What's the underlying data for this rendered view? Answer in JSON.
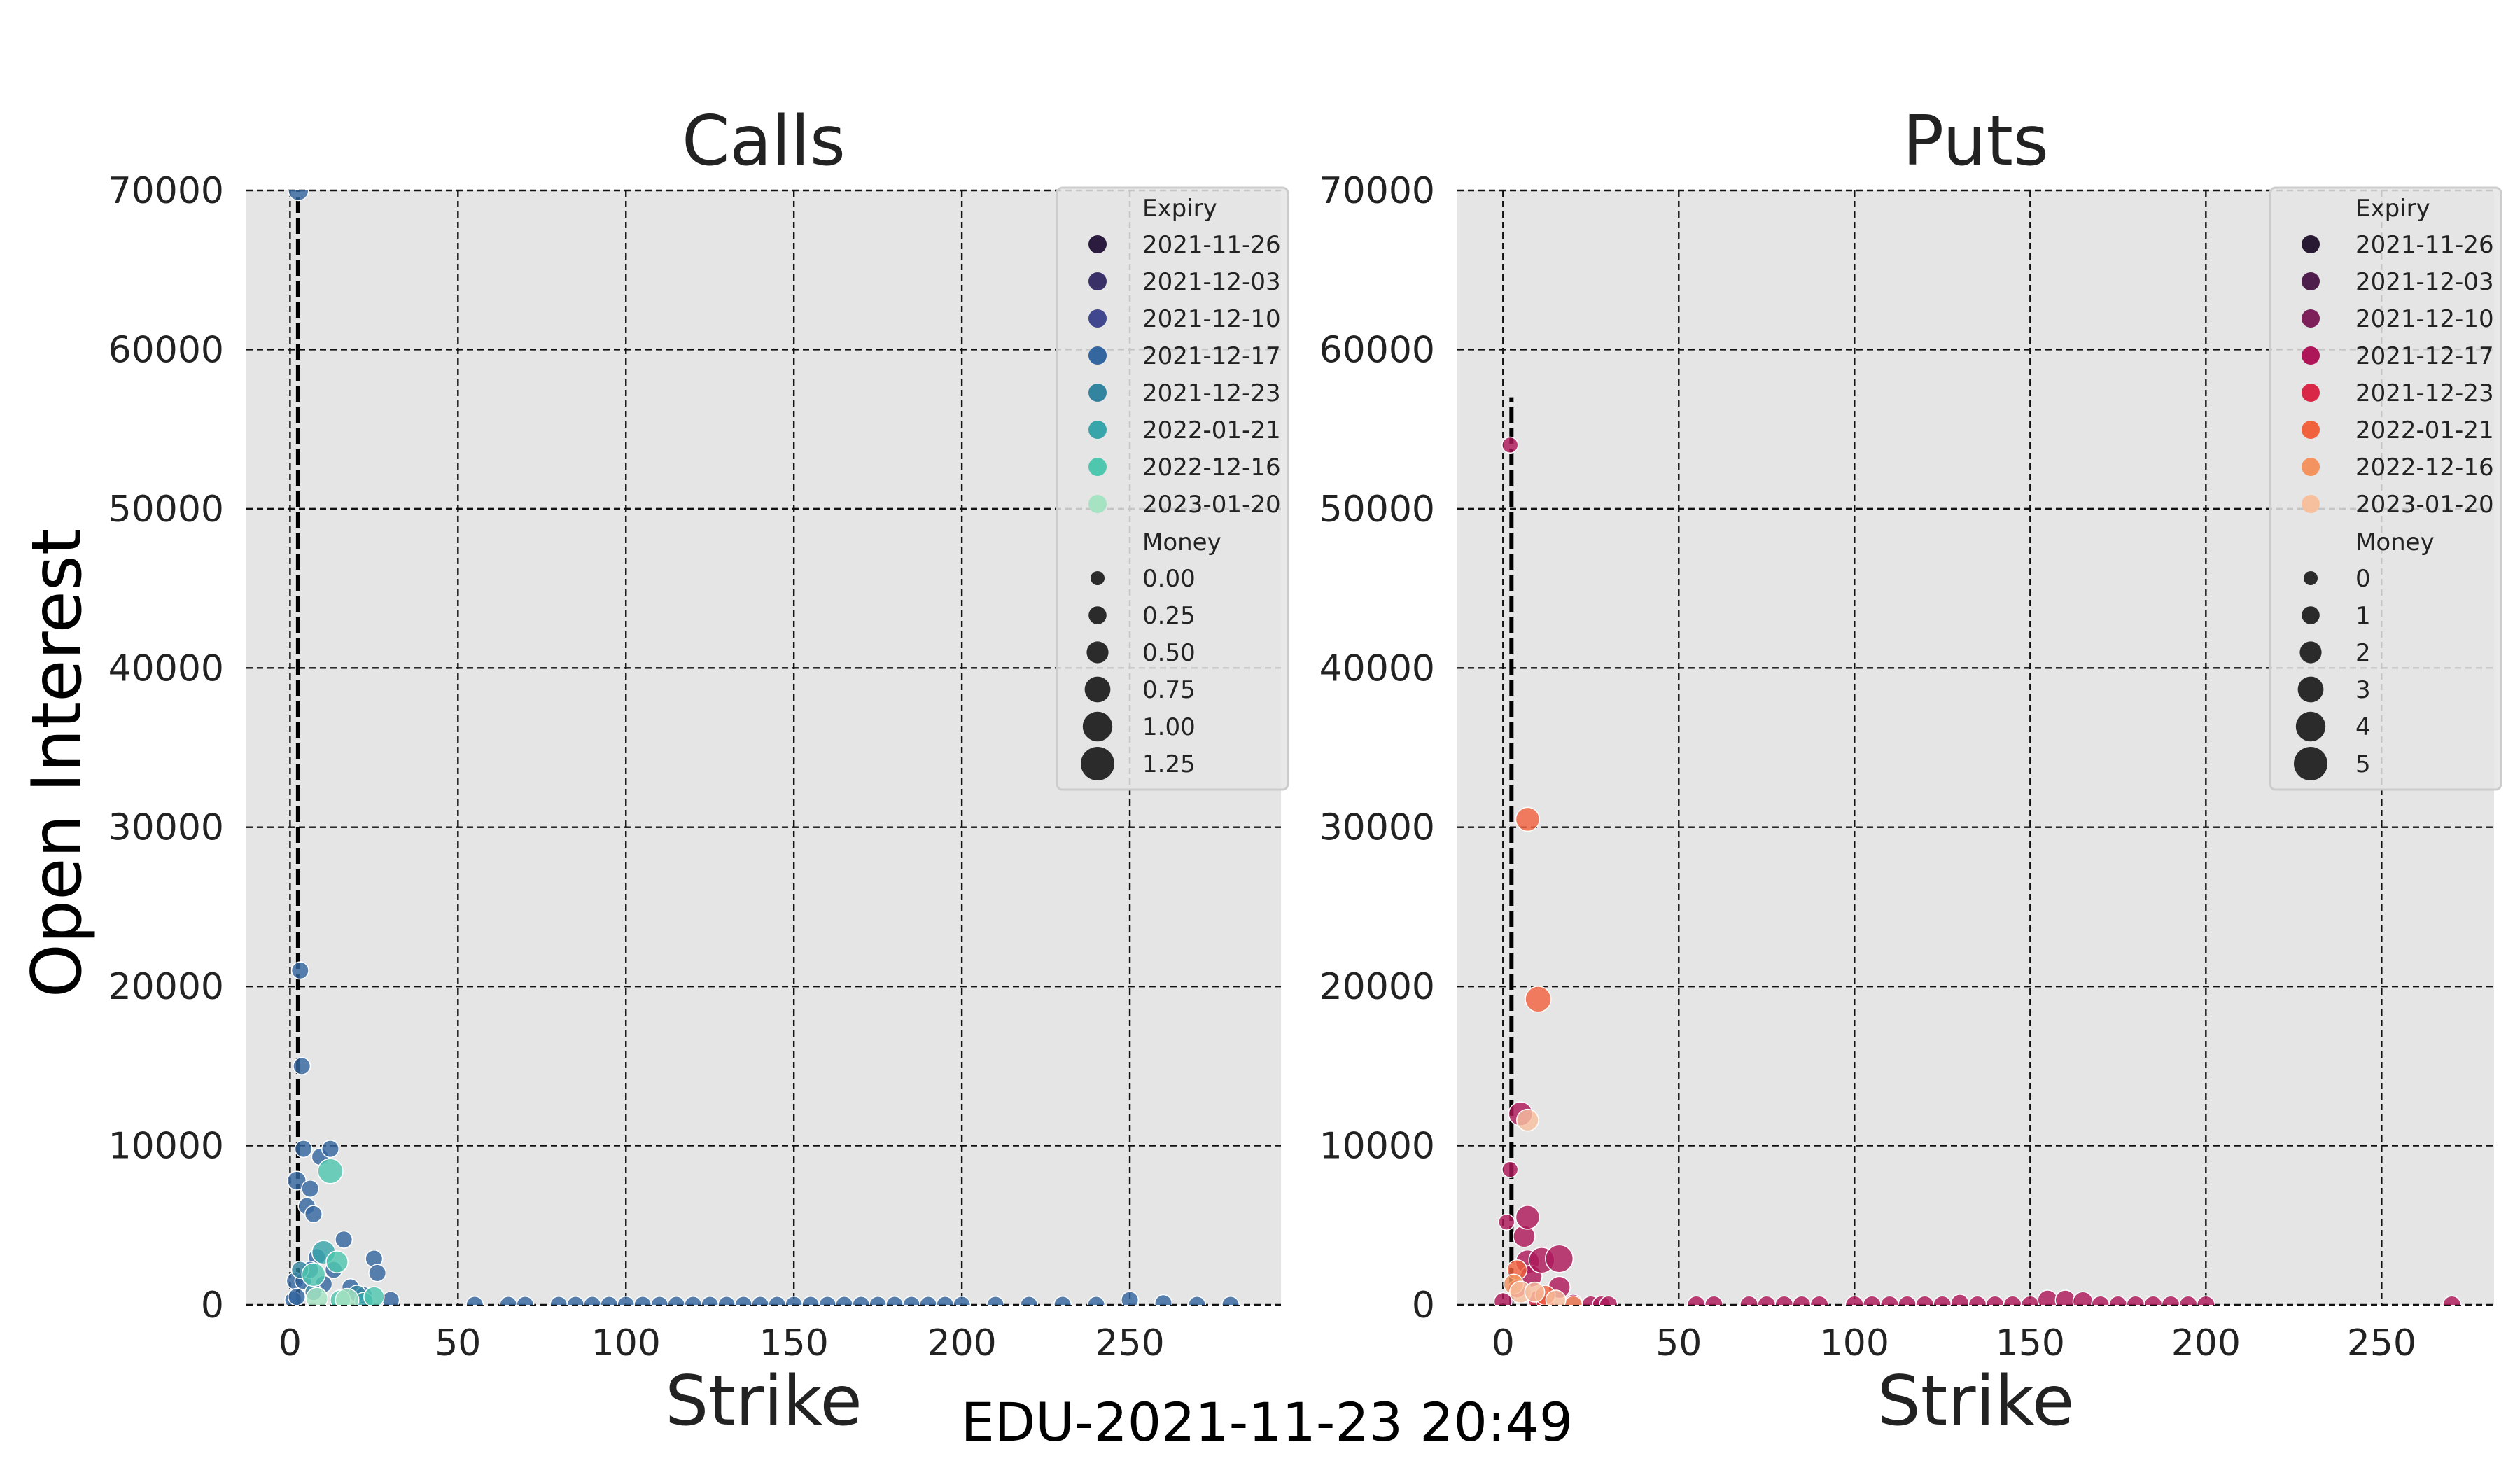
{
  "figure": {
    "suptitle": "EDU-2021-11-23 20:49",
    "ylabel": "Open Interest"
  },
  "chart_data": [
    {
      "type": "scatter",
      "title": "Calls",
      "xlabel": "Strike",
      "ylabel": "Open Interest",
      "xlim": [
        -13,
        295
      ],
      "ylim": [
        0,
        70000
      ],
      "xticks": [
        "0",
        "50",
        "100",
        "150",
        "200",
        "250"
      ],
      "yticks": [
        "0",
        "10000",
        "20000",
        "30000",
        "40000",
        "50000",
        "60000",
        "70000"
      ],
      "grid": true,
      "vline": {
        "x": 2.4,
        "y": [
          0,
          70000
        ]
      },
      "legend_position": "top-right",
      "legend": {
        "hue_title": "Expiry",
        "hue_entries": [
          {
            "label": "2021-11-26",
            "color": "#2b1b3e"
          },
          {
            "label": "2021-12-03",
            "color": "#3a3068"
          },
          {
            "label": "2021-12-10",
            "color": "#41478f"
          },
          {
            "label": "2021-12-17",
            "color": "#3466a0"
          },
          {
            "label": "2021-12-23",
            "color": "#33849f"
          },
          {
            "label": "2022-01-21",
            "color": "#37a5a9"
          },
          {
            "label": "2022-12-16",
            "color": "#4fc7ae"
          },
          {
            "label": "2023-01-20",
            "color": "#a6e3c2"
          }
        ],
        "size_title": "Money",
        "size_entries": [
          "0.00",
          "0.25",
          "0.50",
          "0.75",
          "1.00",
          "1.25"
        ]
      },
      "series": [
        {
          "name": "2021-12-17",
          "color": "#3466a0",
          "points": [
            [
              1,
              300,
              0.2
            ],
            [
              1.5,
              1500,
              0.2
            ],
            [
              2,
              7800,
              0.3
            ],
            [
              2.5,
              70000,
              0.4
            ],
            [
              3,
              21000,
              0.2
            ],
            [
              3.5,
              15000,
              0.2
            ],
            [
              4,
              9800,
              0.2
            ],
            [
              5,
              6200,
              0.2
            ],
            [
              6,
              7300,
              0.2
            ],
            [
              7,
              5700,
              0.2
            ],
            [
              8,
              3000,
              0.2
            ],
            [
              9,
              9300,
              0.2
            ],
            [
              12,
              9800,
              0.2
            ],
            [
              13,
              2200,
              0.2
            ],
            [
              16,
              4100,
              0.2
            ],
            [
              18,
              1100,
              0.2
            ],
            [
              22,
              600,
              0.2
            ],
            [
              25,
              2900,
              0.2
            ],
            [
              26,
              2000,
              0.2
            ],
            [
              30,
              300,
              0.2
            ],
            [
              4,
              1500,
              0.2
            ],
            [
              6,
              2200,
              0.2
            ],
            [
              10,
              1300,
              0.2
            ],
            [
              2,
              500,
              0.2
            ],
            [
              55,
              0,
              0.2
            ],
            [
              65,
              0,
              0.2
            ],
            [
              70,
              0,
              0.2
            ],
            [
              80,
              0,
              0.2
            ],
            [
              85,
              0,
              0.2
            ],
            [
              90,
              0,
              0.2
            ],
            [
              95,
              0,
              0.2
            ],
            [
              100,
              0,
              0.2
            ],
            [
              105,
              0,
              0.2
            ],
            [
              110,
              0,
              0.2
            ],
            [
              115,
              0,
              0.2
            ],
            [
              120,
              0,
              0.2
            ],
            [
              125,
              0,
              0.2
            ],
            [
              130,
              0,
              0.2
            ],
            [
              135,
              0,
              0.2
            ],
            [
              140,
              0,
              0.2
            ],
            [
              145,
              0,
              0.2
            ],
            [
              150,
              0,
              0.2
            ],
            [
              155,
              0,
              0.2
            ],
            [
              160,
              0,
              0.2
            ],
            [
              165,
              0,
              0.2
            ],
            [
              170,
              0,
              0.2
            ],
            [
              175,
              0,
              0.2
            ],
            [
              180,
              0,
              0.2
            ],
            [
              185,
              0,
              0.2
            ],
            [
              190,
              0,
              0.2
            ],
            [
              195,
              0,
              0.2
            ],
            [
              200,
              0,
              0.2
            ],
            [
              210,
              0,
              0.2
            ],
            [
              220,
              0,
              0.2
            ],
            [
              230,
              0,
              0.2
            ],
            [
              240,
              0,
              0.2
            ],
            [
              250,
              300,
              0.2
            ],
            [
              260,
              100,
              0.2
            ],
            [
              270,
              0,
              0.2
            ],
            [
              280,
              0,
              0.2
            ]
          ]
        },
        {
          "name": "2021-12-23",
          "color": "#33849f",
          "points": [
            [
              3,
              2200,
              0.2
            ],
            [
              7,
              800,
              0.2
            ],
            [
              20,
              700,
              0.2
            ]
          ]
        },
        {
          "name": "2022-01-21",
          "color": "#37a5a9",
          "points": [
            [
              10,
              3300,
              0.6
            ],
            [
              22,
              200,
              0.3
            ]
          ]
        },
        {
          "name": "2022-12-16",
          "color": "#4fc7ae",
          "points": [
            [
              12,
              8400,
              0.7
            ],
            [
              14,
              2700,
              0.5
            ],
            [
              7,
              1900,
              0.6
            ],
            [
              15,
              300,
              0.4
            ],
            [
              25,
              500,
              0.4
            ]
          ]
        },
        {
          "name": "2023-01-20",
          "color": "#a6e3c2",
          "points": [
            [
              17,
              300,
              0.6
            ],
            [
              8,
              400,
              0.5
            ]
          ]
        }
      ]
    },
    {
      "type": "scatter",
      "title": "Puts",
      "xlabel": "Strike",
      "ylabel": "",
      "xlim": [
        -13,
        282
      ],
      "ylim": [
        0,
        70000
      ],
      "xticks": [
        "0",
        "50",
        "100",
        "150",
        "200",
        "250"
      ],
      "yticks": [
        "0",
        "10000",
        "20000",
        "30000",
        "40000",
        "50000",
        "60000",
        "70000"
      ],
      "grid": true,
      "vline": {
        "x": 2.4,
        "y": [
          0,
          57000
        ]
      },
      "legend_position": "top-right",
      "legend": {
        "hue_title": "Expiry",
        "hue_entries": [
          {
            "label": "2021-11-26",
            "color": "#291a33"
          },
          {
            "label": "2021-12-03",
            "color": "#4f1d4b"
          },
          {
            "label": "2021-12-10",
            "color": "#7d1f59"
          },
          {
            "label": "2021-12-17",
            "color": "#ad1759"
          },
          {
            "label": "2021-12-23",
            "color": "#d92847"
          },
          {
            "label": "2022-01-21",
            "color": "#f0623e"
          },
          {
            "label": "2022-12-16",
            "color": "#f3935f"
          },
          {
            "label": "2023-01-20",
            "color": "#f6c09f"
          }
        ],
        "size_title": "Money",
        "size_entries": [
          "0",
          "1",
          "2",
          "3",
          "4",
          "5"
        ]
      },
      "series": [
        {
          "name": "2021-12-17",
          "color": "#ad1759",
          "points": [
            [
              2,
              54000,
              0.5
            ],
            [
              2,
              8500,
              0.5
            ],
            [
              1,
              5200,
              0.5
            ],
            [
              5,
              12000,
              2.5
            ],
            [
              6,
              4300,
              2
            ],
            [
              7,
              5500,
              2.5
            ],
            [
              7,
              2700,
              2.5
            ],
            [
              8,
              1800,
              2
            ],
            [
              11,
              2800,
              3
            ],
            [
              16,
              2900,
              3.5
            ],
            [
              16,
              1100,
              2
            ],
            [
              20,
              100,
              1
            ],
            [
              25,
              0,
              1
            ],
            [
              28,
              0,
              1
            ],
            [
              30,
              0,
              1
            ],
            [
              0,
              200,
              1
            ],
            [
              55,
              0,
              1
            ],
            [
              60,
              0,
              1
            ],
            [
              70,
              0,
              1
            ],
            [
              75,
              0,
              1
            ],
            [
              80,
              0,
              1
            ],
            [
              85,
              0,
              1
            ],
            [
              90,
              0,
              1
            ],
            [
              100,
              0,
              1
            ],
            [
              105,
              0,
              1
            ],
            [
              110,
              0,
              1
            ],
            [
              115,
              0,
              1
            ],
            [
              120,
              0,
              1
            ],
            [
              125,
              0,
              1
            ],
            [
              130,
              100,
              1
            ],
            [
              135,
              0,
              1
            ],
            [
              140,
              0,
              1
            ],
            [
              145,
              0,
              1
            ],
            [
              150,
              0,
              1
            ],
            [
              155,
              300,
              1.5
            ],
            [
              160,
              300,
              1.5
            ],
            [
              165,
              200,
              1.5
            ],
            [
              170,
              0,
              1
            ],
            [
              175,
              0,
              1
            ],
            [
              180,
              0,
              1
            ],
            [
              185,
              0,
              1
            ],
            [
              190,
              0,
              1
            ],
            [
              195,
              0,
              1
            ],
            [
              200,
              0,
              1
            ],
            [
              270,
              0,
              1
            ]
          ]
        },
        {
          "name": "2021-12-23",
          "color": "#d92847",
          "points": [
            [
              4,
              1000,
              1
            ],
            [
              10,
              300,
              1.5
            ],
            [
              12,
              0,
              1
            ]
          ]
        },
        {
          "name": "2022-01-21",
          "color": "#f0623e",
          "points": [
            [
              7,
              30500,
              2.5
            ],
            [
              10,
              19200,
              3
            ],
            [
              4,
              2200,
              1.5
            ],
            [
              12,
              600,
              1.5
            ]
          ]
        },
        {
          "name": "2022-12-16",
          "color": "#f3935f",
          "points": [
            [
              3,
              1300,
              1.5
            ],
            [
              20,
              0,
              1
            ]
          ]
        },
        {
          "name": "2023-01-20",
          "color": "#f6c09f",
          "points": [
            [
              7,
              11600,
              2
            ],
            [
              5,
              800,
              2
            ],
            [
              9,
              800,
              1.5
            ],
            [
              15,
              300,
              1.5
            ]
          ]
        }
      ]
    }
  ]
}
